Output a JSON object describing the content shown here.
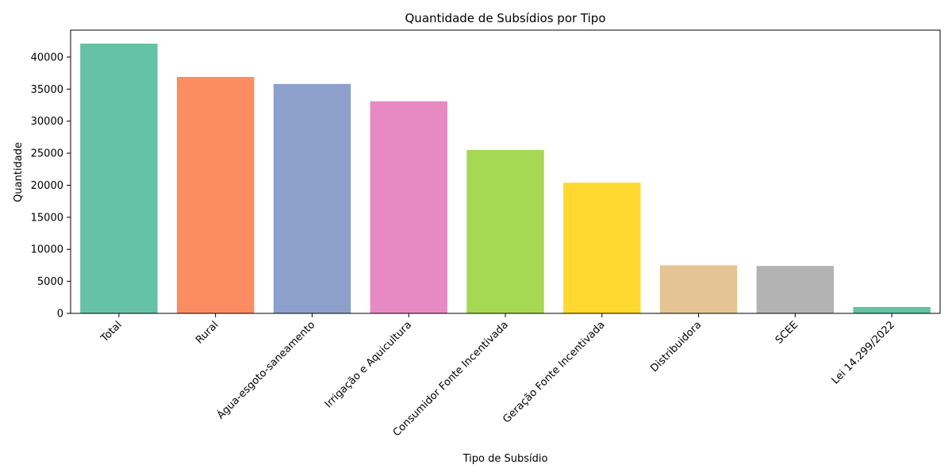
{
  "chart_data": {
    "type": "bar",
    "title": "Quantidade de Subsídios por Tipo",
    "xlabel": "Tipo de Subsídio",
    "ylabel": "Quantidade",
    "categories": [
      "Total",
      "Rural",
      "Água-esgoto-saneamento",
      "Irrigação e Aquicultura",
      "Consumidor Fonte Incentivada",
      "Geração Fonte Incentivada",
      "Distribuidora",
      "SCEE",
      "Lei 14.299/2022"
    ],
    "values": [
      42100,
      36900,
      35800,
      33100,
      25500,
      20400,
      7500,
      7400,
      1000
    ],
    "colors": [
      "#66c2a5",
      "#fc8d62",
      "#8da0cb",
      "#e78ac3",
      "#a6d854",
      "#ffd92f",
      "#e5c494",
      "#b3b3b3",
      "#66c2a5"
    ],
    "ylim": [
      0,
      44200
    ],
    "yticks": [
      0,
      5000,
      10000,
      15000,
      20000,
      25000,
      30000,
      35000,
      40000
    ],
    "grid": false,
    "legend": "none"
  }
}
